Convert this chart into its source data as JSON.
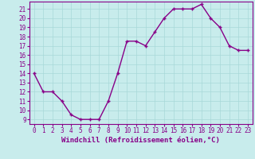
{
  "x": [
    0,
    1,
    2,
    3,
    4,
    5,
    6,
    7,
    8,
    9,
    10,
    11,
    12,
    13,
    14,
    15,
    16,
    17,
    18,
    19,
    20,
    21,
    22,
    23
  ],
  "y": [
    14,
    12,
    12,
    11,
    9.5,
    9,
    9,
    9,
    11,
    14,
    17.5,
    17.5,
    17,
    18.5,
    20,
    21,
    21,
    21,
    21.5,
    20,
    19,
    17,
    16.5,
    16.5
  ],
  "line_color": "#880088",
  "marker": "+",
  "marker_color": "#880088",
  "bg_color": "#c8ecec",
  "grid_color": "#a8d8d8",
  "xlabel": "Windchill (Refroidissement éolien,°C)",
  "xlabel_fontsize": 6.5,
  "ylim": [
    8.5,
    21.8
  ],
  "xlim": [
    -0.5,
    23.5
  ],
  "yticks": [
    9,
    10,
    11,
    12,
    13,
    14,
    15,
    16,
    17,
    18,
    19,
    20,
    21
  ],
  "xticks": [
    0,
    1,
    2,
    3,
    4,
    5,
    6,
    7,
    8,
    9,
    10,
    11,
    12,
    13,
    14,
    15,
    16,
    17,
    18,
    19,
    20,
    21,
    22,
    23
  ],
  "tick_fontsize": 5.5,
  "line_width": 1.0,
  "marker_size": 3.5
}
